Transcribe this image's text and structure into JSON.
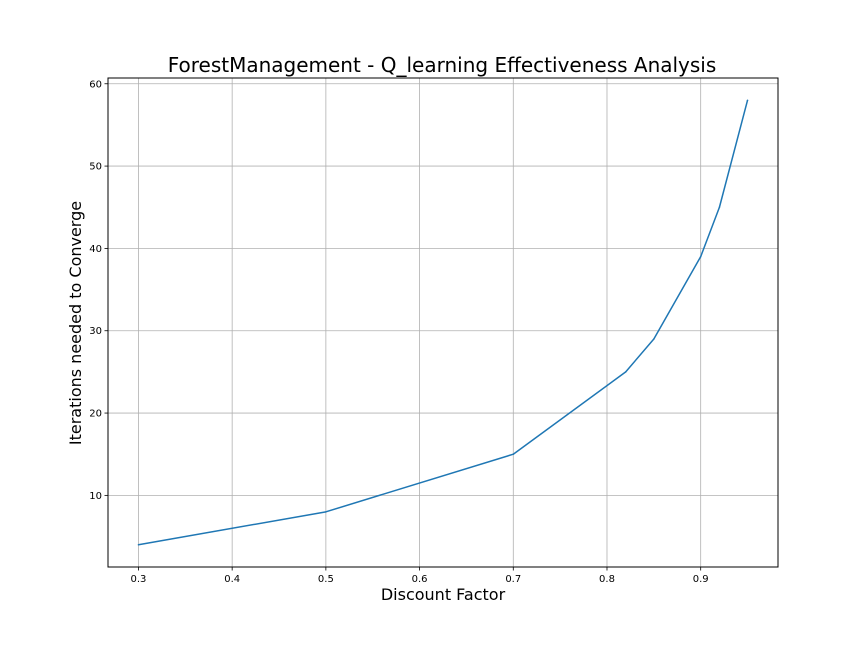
{
  "chart_data": {
    "type": "line",
    "title": "ForestManagement - Q_learning Effectiveness Analysis",
    "xlabel": "Discount Factor",
    "ylabel": "Iterations needed to Converge",
    "xlim": [
      0.2675,
      0.9825
    ],
    "ylim": [
      1.3,
      60.7
    ],
    "grid": true,
    "series_color": "#1f77b4",
    "x_ticks": [
      {
        "value": 0.3,
        "label": "0.3"
      },
      {
        "value": 0.4,
        "label": "0.4"
      },
      {
        "value": 0.5,
        "label": "0.5"
      },
      {
        "value": 0.6,
        "label": "0.6"
      },
      {
        "value": 0.7,
        "label": "0.7"
      },
      {
        "value": 0.8,
        "label": "0.8"
      },
      {
        "value": 0.9,
        "label": "0.9"
      }
    ],
    "y_ticks": [
      {
        "value": 10,
        "label": "10"
      },
      {
        "value": 20,
        "label": "20"
      },
      {
        "value": 30,
        "label": "30"
      },
      {
        "value": 40,
        "label": "40"
      },
      {
        "value": 50,
        "label": "50"
      },
      {
        "value": 60,
        "label": "60"
      }
    ],
    "series": [
      {
        "x": [
          0.3,
          0.5,
          0.7,
          0.82,
          0.85,
          0.9,
          0.92,
          0.95
        ],
        "y": [
          4,
          8,
          15,
          25,
          29,
          39,
          45,
          58
        ]
      }
    ]
  }
}
